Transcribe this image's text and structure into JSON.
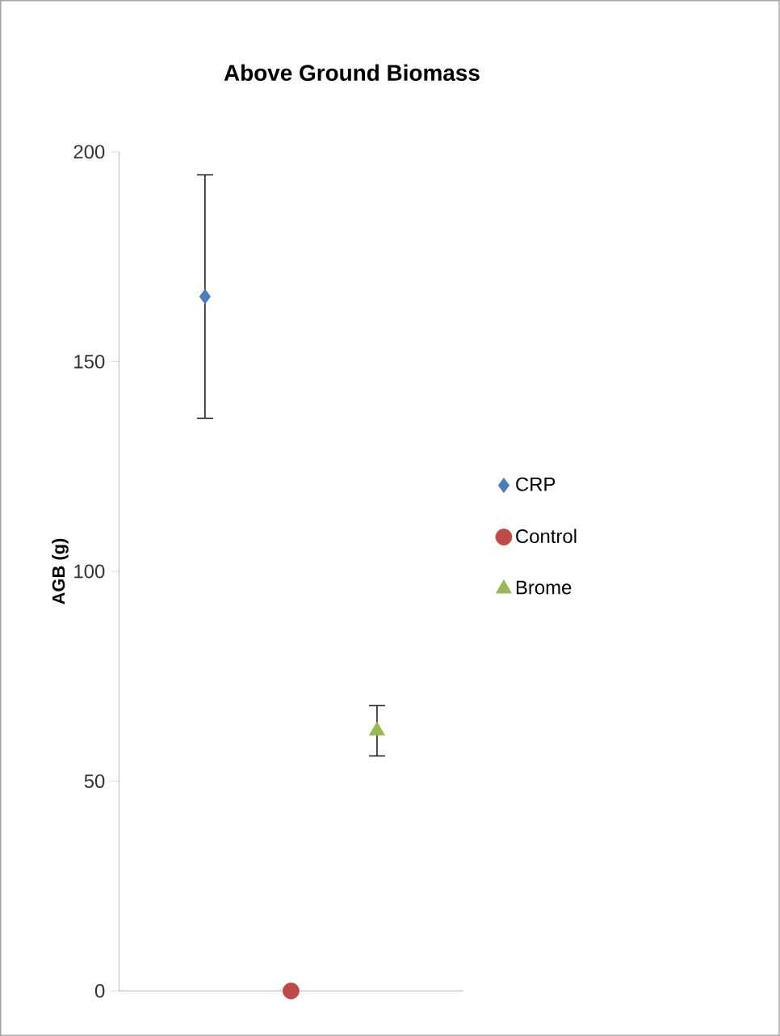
{
  "chart_data": {
    "type": "scatter",
    "title": "Above Ground Biomass",
    "ylabel": "AGB (g)",
    "categories": [
      null,
      null,
      null
    ],
    "series": [
      {
        "name": "CRP",
        "color": "#4a7ebb",
        "marker": "diamond",
        "values": [
          165.5,
          null,
          null
        ],
        "errors": [
          29,
          null,
          null
        ]
      },
      {
        "name": "Control",
        "color": "#be4b48",
        "marker": "circle",
        "values": [
          null,
          0,
          null
        ],
        "errors": [
          null,
          null,
          null
        ]
      },
      {
        "name": "Brome",
        "color": "#98b954",
        "marker": "triangle",
        "values": [
          null,
          null,
          62
        ],
        "errors": [
          null,
          null,
          6
        ]
      }
    ],
    "ylim": [
      0,
      200
    ],
    "yticks": [
      0,
      50,
      100,
      150,
      200
    ],
    "grid": false,
    "legend": "right"
  }
}
